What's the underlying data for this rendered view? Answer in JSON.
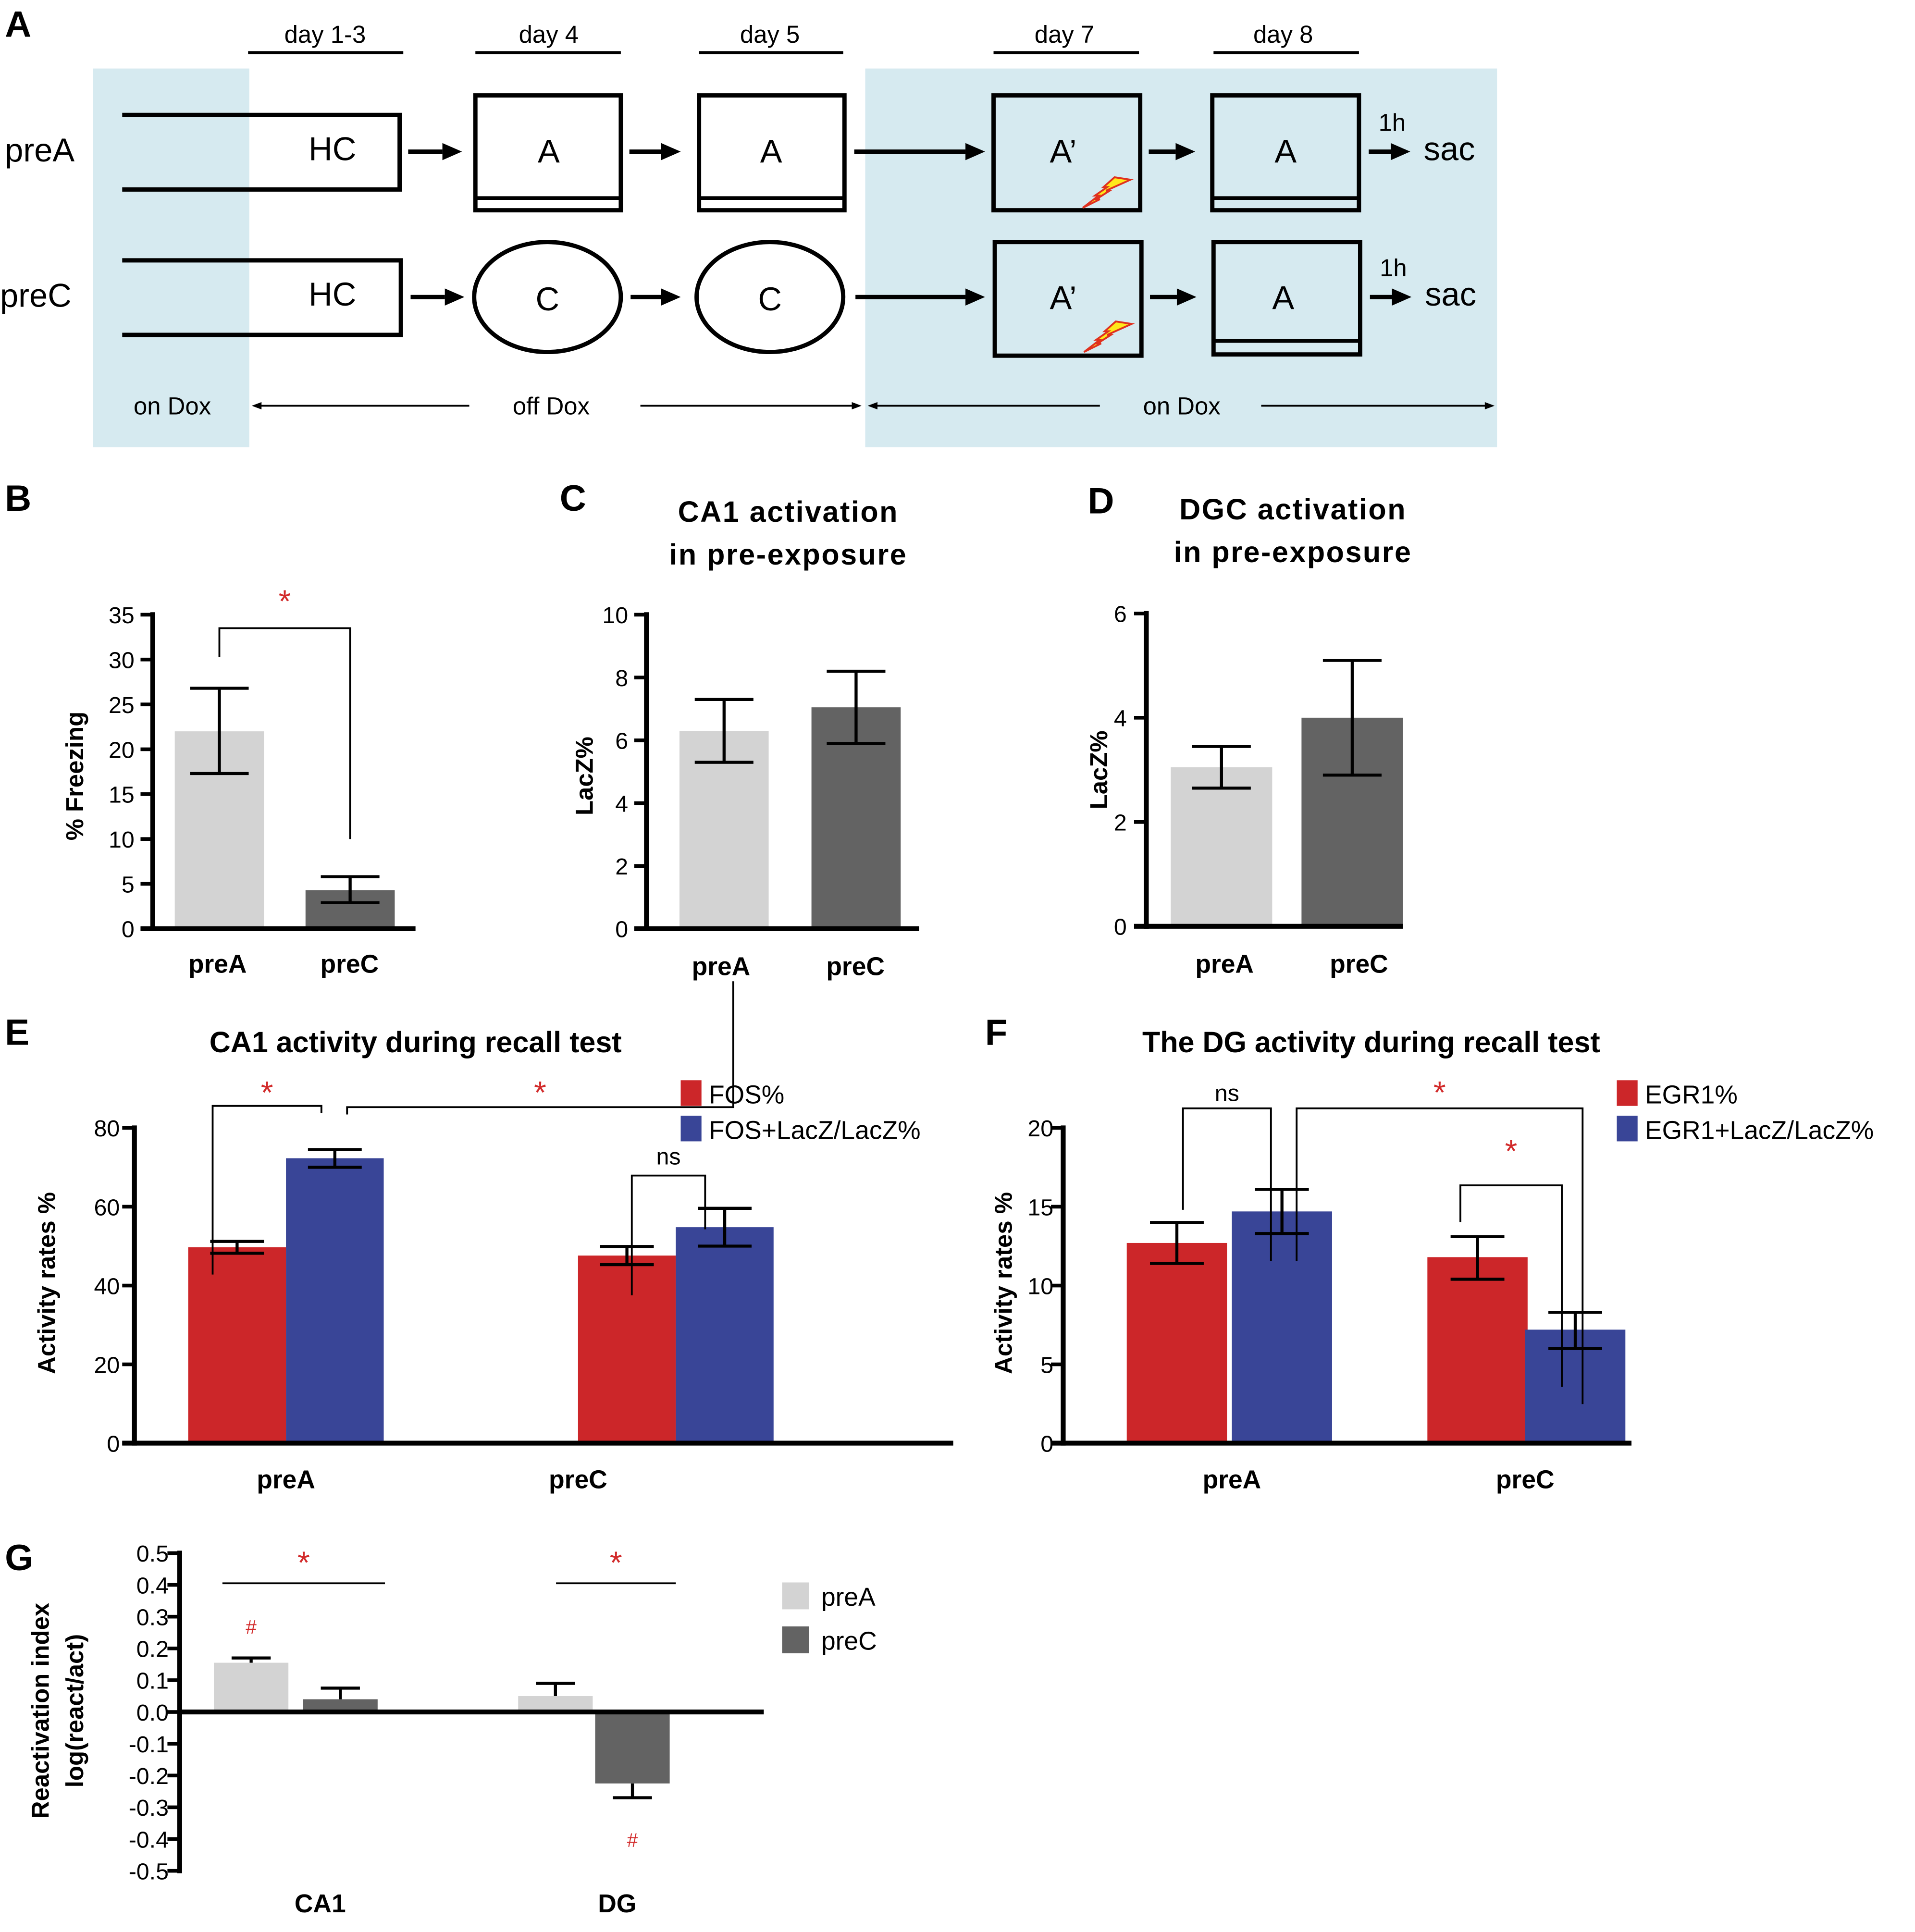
{
  "figure": {
    "panel_a": {
      "letter": "A",
      "days": [
        "day 1-3",
        "day 4",
        "day 5",
        "day 7",
        "day 8"
      ],
      "rows": [
        {
          "label": "preA",
          "steps": [
            "HC",
            "A",
            "A",
            "A’",
            "A"
          ],
          "end_time": "1h",
          "end_label": "sac"
        },
        {
          "label": "preC",
          "steps": [
            "HC",
            "C",
            "C",
            "A’",
            "A"
          ],
          "end_time": "1h",
          "end_label": "sac"
        }
      ],
      "dox_labels": {
        "first": "on Dox",
        "middle": "off Dox",
        "last": "on Dox"
      },
      "shock_icon": "lightning-bolt",
      "colors": {
        "dox_shade": "#d6eaf0",
        "bolt_fill": "#ffe81a",
        "bolt_stroke": "#e0301e"
      }
    },
    "colors": {
      "preA": "#d3d3d3",
      "preC": "#636363",
      "red": "#cc2629",
      "blue": "#394597",
      "star": "#d22a2a"
    }
  },
  "chart_data": [
    {
      "id": "B",
      "letter": "B",
      "type": "bar",
      "title": "",
      "xlabel": "",
      "ylabel": "% Freezing",
      "categories": [
        "preA",
        "preC"
      ],
      "values": [
        22.0,
        4.3
      ],
      "err_low": [
        17.3,
        2.9
      ],
      "err_high": [
        26.8,
        5.8
      ],
      "ylim": [
        0,
        35
      ],
      "yticks": [
        "0",
        "5",
        "10",
        "15",
        "20",
        "25",
        "30",
        "35"
      ],
      "annotations": [
        {
          "type": "bracket",
          "from": "preA",
          "to": "preC",
          "label": "*"
        }
      ]
    },
    {
      "id": "C",
      "letter": "C",
      "type": "bar",
      "title": "CA1 activation",
      "subtitle": "in pre-exposure",
      "ylabel": "LacZ%",
      "categories": [
        "preA",
        "preC"
      ],
      "values": [
        6.3,
        7.05
      ],
      "err_low": [
        5.3,
        5.9
      ],
      "err_high": [
        7.3,
        8.2
      ],
      "ylim": [
        0,
        10
      ],
      "yticks": [
        "0",
        "2",
        "4",
        "6",
        "8",
        "10"
      ]
    },
    {
      "id": "D",
      "letter": "D",
      "type": "bar",
      "title": "DGC activation",
      "subtitle": "in pre-exposure",
      "ylabel": "LacZ%",
      "categories": [
        "preA",
        "preC"
      ],
      "values": [
        3.05,
        4.0
      ],
      "err_low": [
        2.65,
        2.9
      ],
      "err_high": [
        3.45,
        5.1
      ],
      "ylim": [
        0,
        6
      ],
      "yticks": [
        "0",
        "2",
        "4",
        "6"
      ]
    },
    {
      "id": "E",
      "letter": "E",
      "type": "bar",
      "title": "CA1 activity during recall test",
      "ylabel": "Activity rates %",
      "categories": [
        "preA",
        "preC"
      ],
      "series": [
        {
          "name": "FOS%",
          "values": [
            49.7,
            47.6
          ],
          "err_low": [
            48.2,
            45.3
          ],
          "err_high": [
            51.2,
            49.9
          ]
        },
        {
          "name": "FOS+LacZ/LacZ%",
          "values": [
            72.3,
            54.8
          ],
          "err_low": [
            70.0,
            50.0
          ],
          "err_high": [
            74.5,
            59.6
          ]
        }
      ],
      "ylim": [
        0,
        80
      ],
      "yticks": [
        "0",
        "20",
        "40",
        "60",
        "80"
      ],
      "legend": "top-right",
      "annotations": [
        {
          "type": "bracket",
          "from": "preA FOS%",
          "to": "preA FOS+LacZ/LacZ%",
          "label": "*"
        },
        {
          "type": "bracket",
          "from": "preA FOS+LacZ/LacZ%",
          "to": "preC FOS+LacZ/LacZ%",
          "label": "*"
        },
        {
          "type": "bracket",
          "from": "preC FOS%",
          "to": "preC FOS+LacZ/LacZ%",
          "label": "ns"
        }
      ]
    },
    {
      "id": "F",
      "letter": "F",
      "type": "bar",
      "title": "The DG activity during recall test",
      "ylabel": "Activity rates %",
      "categories": [
        "preA",
        "preC"
      ],
      "series": [
        {
          "name": "EGR1%",
          "values": [
            12.7,
            11.8
          ],
          "err_low": [
            11.4,
            10.4
          ],
          "err_high": [
            14.0,
            13.1
          ]
        },
        {
          "name": "EGR1+LacZ/LacZ%",
          "values": [
            14.7,
            7.2
          ],
          "err_low": [
            13.3,
            6.0
          ],
          "err_high": [
            16.1,
            8.3
          ]
        }
      ],
      "ylim": [
        0,
        20
      ],
      "yticks": [
        "0",
        "5",
        "10",
        "15",
        "20"
      ],
      "legend": "top-right",
      "annotations": [
        {
          "type": "bracket",
          "from": "preA EGR1%",
          "to": "preA EGR1+LacZ/LacZ%",
          "label": "ns"
        },
        {
          "type": "bracket",
          "from": "preA EGR1+LacZ/LacZ%",
          "to": "preC EGR1+LacZ/LacZ%",
          "label": "*"
        },
        {
          "type": "bracket",
          "from": "preC EGR1%",
          "to": "preC EGR1+LacZ/LacZ%",
          "label": "*"
        }
      ]
    },
    {
      "id": "G",
      "letter": "G",
      "type": "bar",
      "title": "",
      "ylabel": "Reactivation index",
      "ylabel2": "log(react/act)",
      "categories": [
        "CA1",
        "DG"
      ],
      "series": [
        {
          "name": "preA",
          "values": [
            0.155,
            0.05
          ],
          "err": [
            0.015,
            0.04
          ],
          "err_dir": [
            "up",
            "up"
          ],
          "marks": [
            "#",
            ""
          ]
        },
        {
          "name": "preC",
          "values": [
            0.04,
            -0.225
          ],
          "err": [
            0.035,
            0.045
          ],
          "err_dir": [
            "up",
            "down"
          ],
          "marks": [
            "",
            "#"
          ]
        }
      ],
      "ylim": [
        -0.5,
        0.5
      ],
      "yticks": [
        "-0.5",
        "-0.4",
        "-0.3",
        "-0.2",
        "-0.1",
        "0.0",
        "0.1",
        "0.2",
        "0.3",
        "0.4",
        "0.5"
      ],
      "legend": "right",
      "annotations": [
        {
          "type": "line",
          "group": "CA1",
          "label": "*"
        },
        {
          "type": "line",
          "group": "DG",
          "label": "*"
        }
      ]
    }
  ]
}
